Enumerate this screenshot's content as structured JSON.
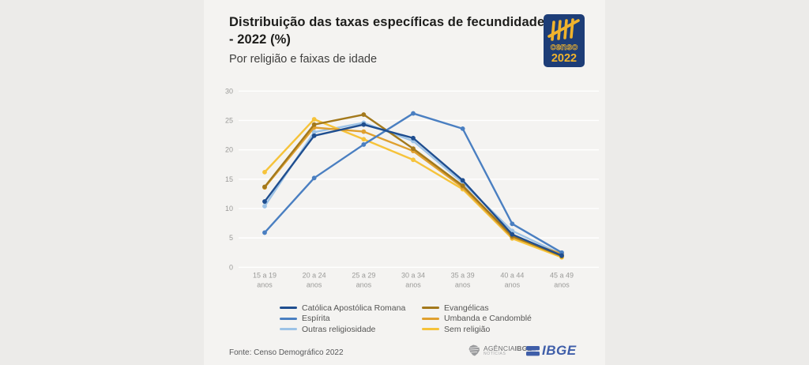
{
  "header": {
    "title": "Distribuição das taxas específicas de fecundidade - 2022 (%)",
    "subtitle": "Por religião e faixas de idade",
    "censo_logo": {
      "word": "censo",
      "year": "2022",
      "bg_color": "#1d3d77",
      "accent_color": "#f0b32c"
    }
  },
  "chart_data": {
    "type": "line",
    "categories": [
      "15 a 19",
      "20 a 24",
      "25 a 29",
      "30 a 34",
      "35 a 39",
      "40 a 44",
      "45 a 49"
    ],
    "category_suffix": "anos",
    "y_ticks": [
      0,
      5,
      10,
      15,
      20,
      25,
      30
    ],
    "ylim": [
      0,
      30
    ],
    "grid": true,
    "gridline_color": "#ffffff",
    "axis_text_color": "#9a9a98",
    "legend_position": "bottom",
    "series": [
      {
        "name": "Católica Apostólica Romana",
        "color": "#1f4e8f",
        "values": [
          11.2,
          22.4,
          24.3,
          22.0,
          14.8,
          5.6,
          2.0
        ]
      },
      {
        "name": "Espírita",
        "color": "#4a7fc1",
        "values": [
          5.9,
          15.2,
          20.9,
          26.2,
          23.6,
          7.4,
          2.5
        ]
      },
      {
        "name": "Outras religiosidade",
        "color": "#9dc3e6",
        "values": [
          10.4,
          23.0,
          24.6,
          21.5,
          14.4,
          6.2,
          2.2
        ]
      },
      {
        "name": "Evangélicas",
        "color": "#a3791c",
        "values": [
          13.7,
          24.3,
          26.0,
          20.2,
          13.9,
          5.3,
          1.9
        ]
      },
      {
        "name": "Umbanda e Candomblé",
        "color": "#dfa02f",
        "values": [
          13.6,
          23.8,
          23.1,
          19.8,
          13.6,
          5.1,
          2.3
        ]
      },
      {
        "name": "Sem religião",
        "color": "#f6c33a",
        "values": [
          16.2,
          25.2,
          21.8,
          18.3,
          13.3,
          4.9,
          1.7
        ]
      }
    ],
    "draw_order": [
      2,
      5,
      4,
      3,
      1,
      0
    ]
  },
  "footer": {
    "source": "Fonte: Censo Demográfico 2022",
    "agencia": {
      "name_regular": "AGÊNCIA",
      "name_bold": "IBGE",
      "subtitle": "NOTÍCIAS"
    },
    "ibge_word": "IBGE"
  }
}
